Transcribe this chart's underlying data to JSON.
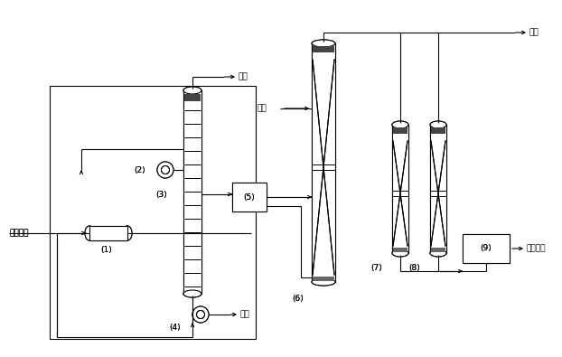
{
  "bg_color": "#ffffff",
  "line_color": "#000000",
  "labels": {
    "acid_water": "酸性废水",
    "waste_gas1": "废气",
    "waste_gas2": "废气",
    "waste_water": "废水",
    "liquid_ammonia": "液氨",
    "purified_h2": "精制氢气",
    "eq1": "(1)",
    "eq2": "(2)",
    "eq3": "(3)",
    "eq4": "(4)",
    "eq5": "(5)",
    "eq6": "(6)",
    "eq7": "(7)",
    "eq8": "(8)",
    "eq9": "(9)"
  }
}
